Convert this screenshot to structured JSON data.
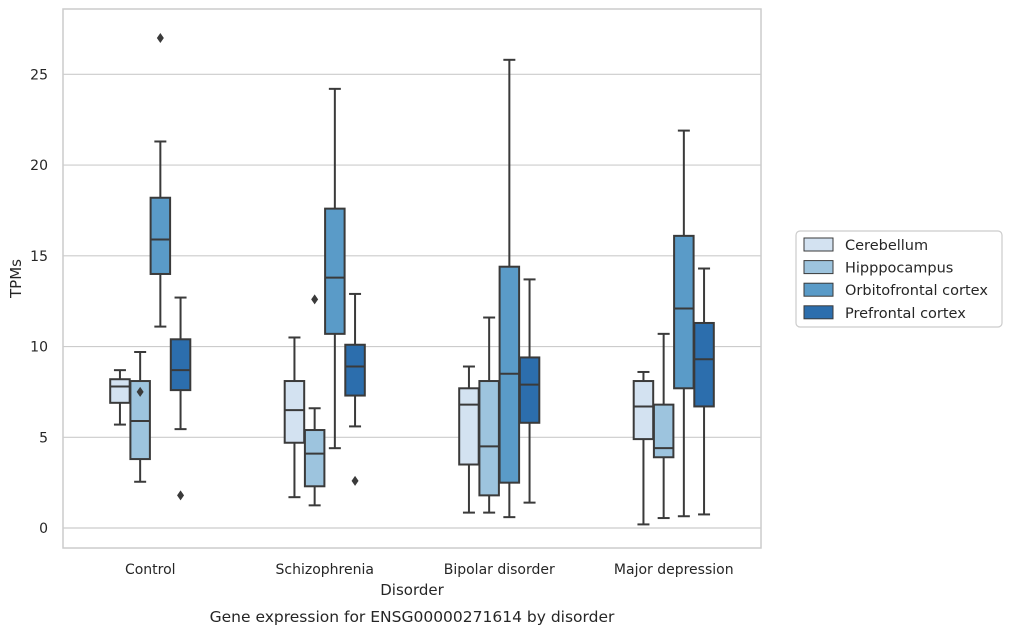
{
  "chart_data": {
    "type": "box",
    "xlabel": "Disorder",
    "ylabel": "TPMs",
    "caption": "Gene expression for ENSG00000271614 by disorder",
    "ylim": [
      -1.1,
      28.6
    ],
    "yticks": [
      0,
      5,
      10,
      15,
      20,
      25
    ],
    "grid": "horizontal",
    "legend_position": "right",
    "categories": [
      "Control",
      "Schizophrenia",
      "Bipolar disorder",
      "Major depression"
    ],
    "series": [
      {
        "name": "Cerebellum",
        "color": "#d3e2f1",
        "boxes": [
          {
            "whisker_low": 5.7,
            "q1": 6.9,
            "median": 7.8,
            "q3": 8.2,
            "whisker_high": 8.7,
            "outliers": []
          },
          {
            "whisker_low": 1.7,
            "q1": 4.7,
            "median": 6.5,
            "q3": 8.1,
            "whisker_high": 10.5,
            "outliers": []
          },
          {
            "whisker_low": 0.85,
            "q1": 3.5,
            "median": 6.8,
            "q3": 7.7,
            "whisker_high": 8.9,
            "outliers": []
          },
          {
            "whisker_low": 0.2,
            "q1": 4.9,
            "median": 6.7,
            "q3": 8.1,
            "whisker_high": 8.6,
            "outliers": []
          }
        ]
      },
      {
        "name": "Hipppocampus",
        "color": "#9dc4de",
        "boxes": [
          {
            "whisker_low": 2.55,
            "q1": 3.8,
            "median": 5.9,
            "q3": 8.1,
            "whisker_high": 9.7,
            "outliers": [
              7.5
            ]
          },
          {
            "whisker_low": 1.25,
            "q1": 2.3,
            "median": 4.1,
            "q3": 5.4,
            "whisker_high": 6.6,
            "outliers": [
              12.6
            ]
          },
          {
            "whisker_low": 0.85,
            "q1": 1.8,
            "median": 4.5,
            "q3": 8.1,
            "whisker_high": 11.6,
            "outliers": []
          },
          {
            "whisker_low": 0.55,
            "q1": 3.9,
            "median": 4.4,
            "q3": 6.8,
            "whisker_high": 10.7,
            "outliers": []
          }
        ]
      },
      {
        "name": "Orbitofrontal cortex",
        "color": "#5a9bc8",
        "boxes": [
          {
            "whisker_low": 11.1,
            "q1": 14.0,
            "median": 15.9,
            "q3": 18.2,
            "whisker_high": 21.3,
            "outliers": [
              27.0
            ]
          },
          {
            "whisker_low": 4.4,
            "q1": 10.7,
            "median": 13.8,
            "q3": 17.6,
            "whisker_high": 24.2,
            "outliers": []
          },
          {
            "whisker_low": 0.6,
            "q1": 2.5,
            "median": 8.5,
            "q3": 14.4,
            "whisker_high": 25.8,
            "outliers": []
          },
          {
            "whisker_low": 0.65,
            "q1": 7.7,
            "median": 12.1,
            "q3": 16.1,
            "whisker_high": 21.9,
            "outliers": []
          }
        ]
      },
      {
        "name": "Prefrontal cortex",
        "color": "#2c6ead",
        "boxes": [
          {
            "whisker_low": 5.45,
            "q1": 7.6,
            "median": 8.7,
            "q3": 10.4,
            "whisker_high": 12.7,
            "outliers": [
              1.8
            ]
          },
          {
            "whisker_low": 5.6,
            "q1": 7.3,
            "median": 8.9,
            "q3": 10.1,
            "whisker_high": 12.9,
            "outliers": [
              2.6
            ]
          },
          {
            "whisker_low": 1.4,
            "q1": 5.8,
            "median": 7.9,
            "q3": 9.4,
            "whisker_high": 13.7,
            "outliers": []
          },
          {
            "whisker_low": 0.75,
            "q1": 6.7,
            "median": 9.3,
            "q3": 11.3,
            "whisker_high": 14.3,
            "outliers": []
          }
        ]
      }
    ]
  }
}
